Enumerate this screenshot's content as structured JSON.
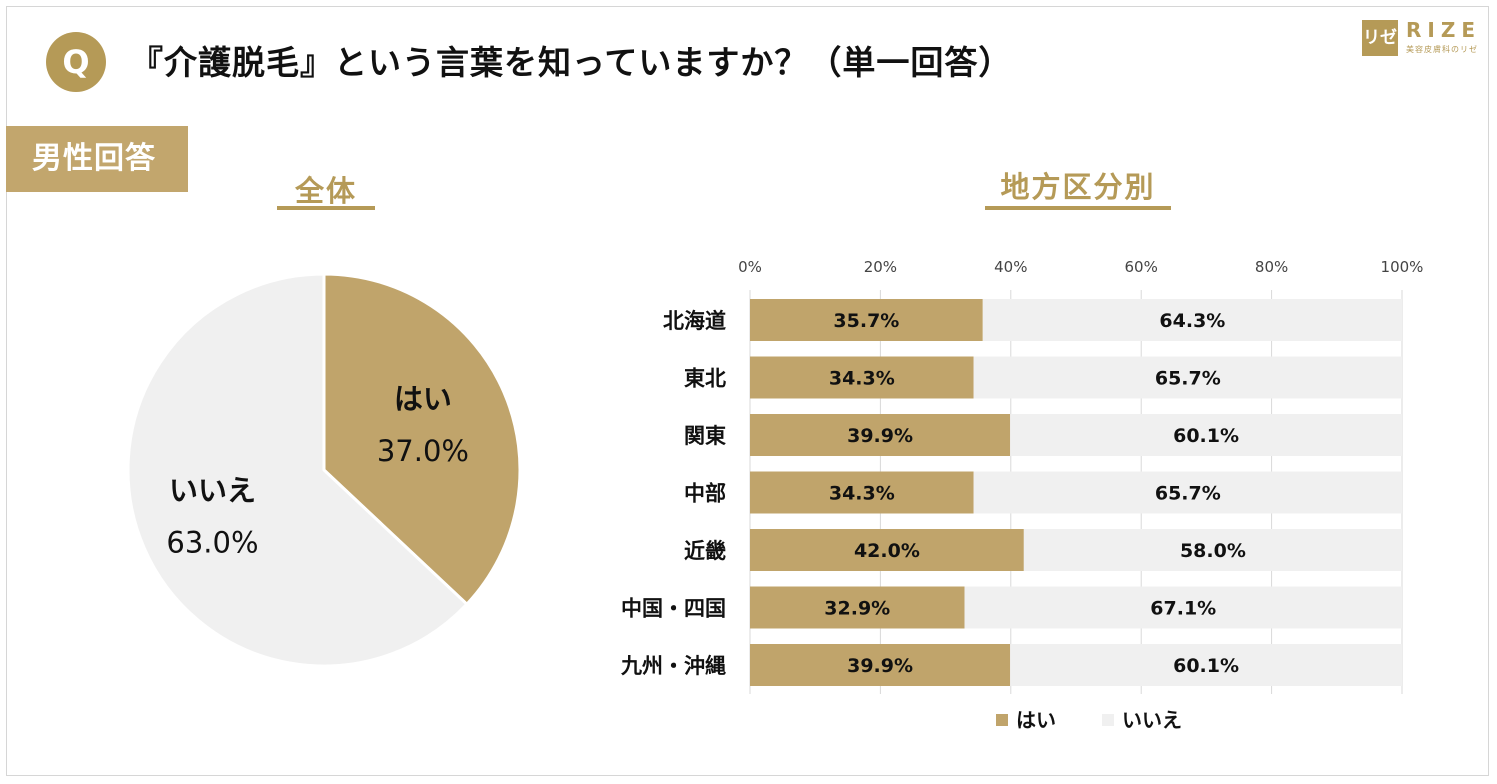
{
  "header": {
    "q_badge": "Q",
    "title": "『介護脱毛』という言葉を知っていますか？（単一回答）"
  },
  "logo": {
    "mark": "リゼ",
    "name": "RIZE",
    "subtitle": "美容皮膚科のリゼ"
  },
  "gender_tag": "男性回答",
  "colors": {
    "yes": "#c0a46b",
    "no": "#f0f0f0",
    "accent": "#b59a57",
    "grid": "#d9d9d9"
  },
  "chart_data": [
    {
      "type": "pie",
      "title": "全体",
      "slices": [
        {
          "label": "はい",
          "value": 37.0,
          "display": "37.0%"
        },
        {
          "label": "いいえ",
          "value": 63.0,
          "display": "63.0%"
        }
      ]
    },
    {
      "type": "bar",
      "orientation": "horizontal",
      "stacked": true,
      "title": "地方区分別",
      "categories": [
        "北海道",
        "東北",
        "関東",
        "中部",
        "近畿",
        "中国・四国",
        "九州・沖縄"
      ],
      "series": [
        {
          "name": "はい",
          "values": [
            35.7,
            34.3,
            39.9,
            34.3,
            42.0,
            32.9,
            39.9
          ],
          "labels": [
            "35.7%",
            "34.3%",
            "39.9%",
            "34.3%",
            "42.0%",
            "32.9%",
            "39.9%"
          ]
        },
        {
          "name": "いいえ",
          "values": [
            64.3,
            65.7,
            60.1,
            65.7,
            58.0,
            67.1,
            60.1
          ],
          "labels": [
            "64.3%",
            "65.7%",
            "60.1%",
            "65.7%",
            "58.0%",
            "67.1%",
            "60.1%"
          ]
        }
      ],
      "xlim": [
        0,
        100
      ],
      "ticks": [
        "0%",
        "20%",
        "40%",
        "60%",
        "80%",
        "100%"
      ],
      "legend": [
        "はい",
        "いいえ"
      ],
      "legend_position": "bottom"
    }
  ]
}
